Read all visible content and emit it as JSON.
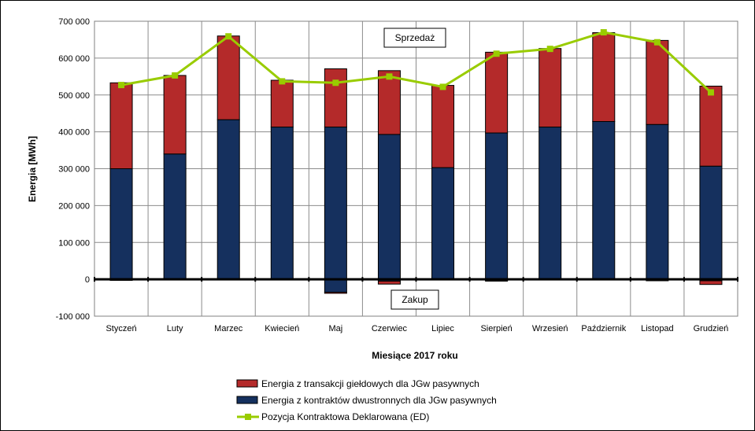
{
  "chart_data": {
    "type": "bar",
    "stacked": true,
    "categories": [
      "Styczeń",
      "Luty",
      "Marzec",
      "Kwiecień",
      "Maj",
      "Czerwiec",
      "Lipiec",
      "Sierpień",
      "Wrzesień",
      "Październik",
      "Listopad",
      "Grudzień"
    ],
    "xlabel": "Miesiące 2017  roku",
    "ylabel": "Energia  [MWh]",
    "ylim": [
      -100000,
      700000
    ],
    "yticks": [
      -100000,
      0,
      100000,
      200000,
      300000,
      400000,
      500000,
      600000,
      700000
    ],
    "ytick_labels": [
      "-100 000",
      "0",
      "100 000",
      "200 000",
      "300 000",
      "400 000",
      "500 000",
      "600 000",
      "700 000"
    ],
    "grid": true,
    "legend_position": "bottom",
    "annotations": {
      "sale": "Sprzedaż",
      "purchase": "Zakup"
    },
    "series": [
      {
        "name": "Energia z kontraktów dwustronnych dla JGw pasywnych",
        "kind": "bar",
        "color": "#15305e",
        "values": [
          300000,
          340000,
          433000,
          413000,
          413000,
          393000,
          303000,
          397000,
          413000,
          428000,
          420000,
          307000
        ],
        "negative_values": [
          -3000,
          0,
          0,
          0,
          -35000,
          -5000,
          0,
          -3000,
          0,
          0,
          -4000,
          -4000
        ]
      },
      {
        "name": "Energia z transakcji giełdowych dla JGw pasywnych",
        "kind": "bar",
        "color": "#b42a2a",
        "values": [
          233000,
          213000,
          227000,
          127000,
          158000,
          173000,
          223000,
          219000,
          213000,
          241000,
          228000,
          217000
        ],
        "negative_values": [
          0,
          0,
          0,
          0,
          -3000,
          -8000,
          0,
          -2000,
          0,
          0,
          0,
          -10000
        ]
      },
      {
        "name": "Pozycja Kontraktowa Deklarowana (ED)",
        "kind": "line",
        "color": "#99cc00",
        "values": [
          527000,
          553000,
          659000,
          537000,
          533000,
          550000,
          522000,
          612000,
          625000,
          670000,
          643000,
          507000
        ]
      }
    ],
    "legend_order": [
      1,
      0,
      2
    ]
  }
}
